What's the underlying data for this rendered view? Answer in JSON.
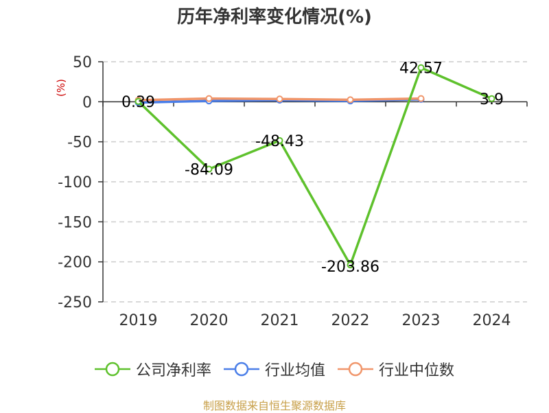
{
  "chart_data": {
    "type": "line",
    "title": "历年净利率变化情况(%)",
    "ylabel": "(%)",
    "ylim": [
      -250,
      50
    ],
    "yticks": [
      50,
      0,
      -50,
      -100,
      -150,
      -200,
      -250
    ],
    "categories": [
      "2019",
      "2020",
      "2021",
      "2022",
      "2023",
      "2024"
    ],
    "grid": true,
    "legend_position": "bottom",
    "series": [
      {
        "name": "公司净利率",
        "color": "#5ec12c",
        "values": [
          0.39,
          -84.09,
          -48.43,
          -203.86,
          42.57,
          3.9
        ],
        "labels": [
          "0.39",
          "-84.09",
          "-48.43",
          "-203.86",
          "42.57",
          "3.9"
        ]
      },
      {
        "name": "行业均值",
        "color": "#4a7ee8",
        "values": [
          -1,
          1,
          2,
          1,
          3,
          null
        ]
      },
      {
        "name": "行业中位数",
        "color": "#f0956a",
        "values": [
          2,
          4,
          3.5,
          2.5,
          4,
          null
        ]
      }
    ]
  },
  "source": "制图数据来自恒生聚源数据库"
}
